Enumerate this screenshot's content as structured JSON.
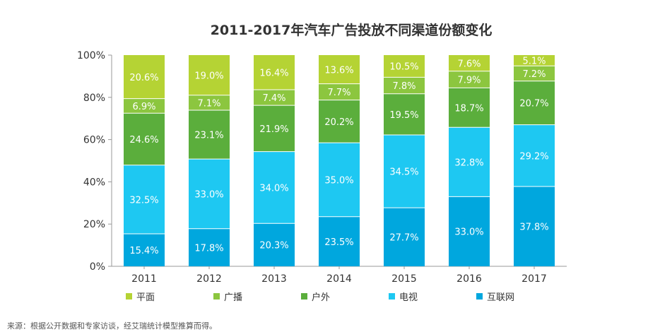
{
  "title": "2011-2017年汽车广告投放不同渠道份额变化",
  "source_note": "来源：根据公开数据和专家访谈，经艾瑞统计模型推算而得。",
  "chart_data": {
    "type": "bar",
    "stacked": true,
    "title": "2011-2017年汽车广告投放不同渠道份额变化",
    "categories": [
      "2011",
      "2012",
      "2013",
      "2014",
      "2015",
      "2016",
      "2017"
    ],
    "y_ticks": [
      "0%",
      "20%",
      "40%",
      "60%",
      "80%",
      "100%"
    ],
    "ylim": [
      0,
      100
    ],
    "grid": false,
    "legend_position": "bottom",
    "series": [
      {
        "name": "互联网",
        "color": "#00A7DE",
        "values": [
          15.4,
          17.8,
          20.3,
          23.5,
          27.7,
          33.0,
          37.8
        ],
        "labels": [
          "15.4%",
          "17.8%",
          "20.3%",
          "23.5%",
          "27.7%",
          "33.0%",
          "37.8%"
        ]
      },
      {
        "name": "电视",
        "color": "#1EC8F2",
        "values": [
          32.5,
          33.0,
          34.0,
          35.0,
          34.5,
          32.8,
          29.2
        ],
        "labels": [
          "32.5%",
          "33.0%",
          "34.0%",
          "35.0%",
          "34.5%",
          "32.8%",
          "29.2%"
        ]
      },
      {
        "name": "户外",
        "color": "#5BAE3C",
        "values": [
          24.6,
          23.1,
          21.9,
          20.2,
          19.5,
          18.7,
          20.7
        ],
        "labels": [
          "24.6%",
          "23.1%",
          "21.9%",
          "20.2%",
          "19.5%",
          "18.7%",
          "20.7%"
        ]
      },
      {
        "name": "广播",
        "color": "#8CC63F",
        "values": [
          6.9,
          7.1,
          7.4,
          7.7,
          7.8,
          7.9,
          7.2
        ],
        "labels": [
          "6.9%",
          "7.1%",
          "7.4%",
          "7.7%",
          "7.8%",
          "7.9%",
          "7.2%"
        ]
      },
      {
        "name": "平面",
        "color": "#B5D334",
        "values": [
          20.6,
          19.0,
          16.4,
          13.6,
          10.5,
          7.6,
          5.1
        ],
        "labels": [
          "20.6%",
          "19.0%",
          "16.4%",
          "13.6%",
          "10.5%",
          "7.6%",
          "5.1%"
        ]
      }
    ],
    "legend_order": [
      "平面",
      "广播",
      "户外",
      "电视",
      "互联网"
    ],
    "label_color": "#ffffff",
    "axis_color": "#333333"
  }
}
